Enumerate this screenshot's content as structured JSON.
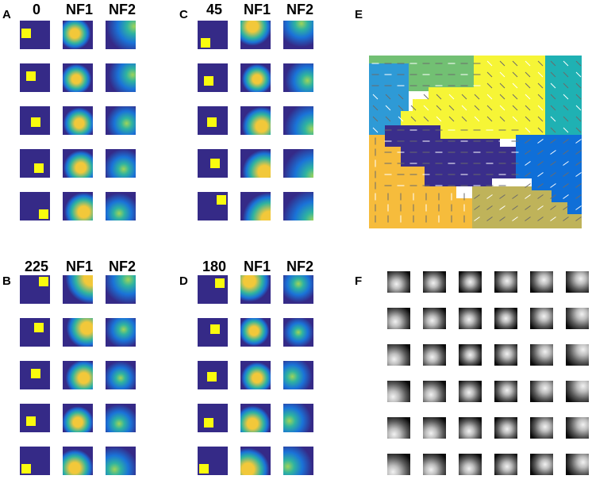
{
  "panels": {
    "A": {
      "label": "A",
      "headers": [
        "0",
        "NF1",
        "NF2"
      ]
    },
    "B": {
      "label": "B",
      "headers": [
        "225",
        "NF1",
        "NF2"
      ]
    },
    "C": {
      "label": "C",
      "headers": [
        "45",
        "NF1",
        "NF2"
      ]
    },
    "D": {
      "label": "D",
      "headers": [
        "180",
        "NF1",
        "NF2"
      ]
    },
    "E": {
      "label": "E"
    },
    "F": {
      "label": "F"
    }
  },
  "colors": {
    "tile_bg": "#352a87",
    "stimulus": "#f9fb0e",
    "field_center": "#f2c83a",
    "field_mid": "#2fb3a0",
    "field_edge": "#1a73d8"
  },
  "region_colors": {
    "green": "#72c073",
    "cyan_blue": "#2e9ad6",
    "yellow": "#f6f536",
    "teal": "#1fb1b3",
    "navy": "#3a2e8b",
    "orange": "#f6bc3c",
    "blue": "#0f6fd8",
    "olive": "#bfb35a"
  }
}
